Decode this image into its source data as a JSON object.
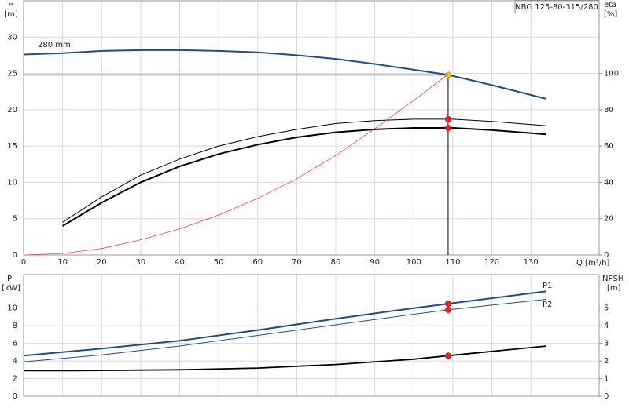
{
  "chart_data": [
    {
      "type": "line",
      "title": "NBG 125-80-315/280",
      "y_label": "H",
      "y_unit": "[m]",
      "y2_label": "eta",
      "y2_unit": "[%]",
      "x_label": "Q [m³/h]",
      "xlim": [
        0,
        147.5
      ],
      "xticks": [
        0,
        10,
        20,
        30,
        40,
        50,
        60,
        70,
        80,
        90,
        100,
        110,
        120,
        130
      ],
      "ylim": [
        0,
        35
      ],
      "yticks": [
        0,
        5,
        10,
        15,
        20,
        25,
        30
      ],
      "y2lim": [
        0,
        140
      ],
      "y2ticks": [
        0,
        20,
        40,
        60,
        80,
        100
      ],
      "grid": true,
      "show_xtick_labels": true,
      "duty": {
        "x": 108.8,
        "y": 24.8
      },
      "series": [
        {
          "name": "280 mm",
          "color": "#1b4f8c",
          "width": 2,
          "axis": "y",
          "x": [
            0,
            10,
            20,
            30,
            40,
            50,
            60,
            70,
            80,
            90,
            100,
            108.8,
            120,
            134
          ],
          "values": [
            27.6,
            27.8,
            28.1,
            28.2,
            28.2,
            28.1,
            27.9,
            27.5,
            27.0,
            26.3,
            25.5,
            24.8,
            23.4,
            21.5
          ],
          "duty_value": 24.8,
          "duty_color": "#f5d000"
        },
        {
          "color": "#000000",
          "width": 1,
          "axis": "y2",
          "x": [
            10,
            20,
            30,
            40,
            50,
            60,
            70,
            80,
            90,
            100,
            110,
            120,
            134
          ],
          "values": [
            18,
            32,
            44,
            52.8,
            60,
            65.2,
            69.2,
            72.4,
            74,
            74.8,
            74.8,
            73.6,
            71.2
          ],
          "duty_value": 74.8,
          "duty_color": "#ff1a1a"
        },
        {
          "color": "#000000",
          "width": 2,
          "axis": "y2",
          "x": [
            10,
            20,
            30,
            40,
            50,
            60,
            70,
            80,
            90,
            100,
            110,
            120,
            134
          ],
          "values": [
            16,
            28.8,
            40,
            48.8,
            55.6,
            60.8,
            64.8,
            67.6,
            69.2,
            70,
            70,
            68.8,
            66.4
          ],
          "duty_value": 70,
          "duty_color": "#ff1a1a"
        },
        {
          "color": "#ff4040",
          "width": 0.8,
          "axis": "y",
          "x": [
            0,
            10,
            20,
            30,
            40,
            50,
            60,
            70,
            80,
            90,
            100,
            108.8
          ],
          "values": [
            0,
            0.2,
            0.9,
            2.1,
            3.6,
            5.5,
            7.8,
            10.5,
            13.7,
            17.4,
            21.3,
            24.9
          ]
        }
      ]
    },
    {
      "type": "line",
      "y_label": "P",
      "y_unit": "[kW]",
      "y2_label": "NPSH",
      "y2_unit": "[m]",
      "xlim": [
        0,
        147.5
      ],
      "xticks": [
        0,
        10,
        20,
        30,
        40,
        50,
        60,
        70,
        80,
        90,
        100,
        110,
        120,
        130
      ],
      "ylim": [
        0,
        13.8
      ],
      "yticks": [
        0,
        2,
        4,
        6,
        8,
        10
      ],
      "y2lim": [
        0,
        6.9
      ],
      "y2ticks": [
        0,
        1,
        2,
        3,
        4,
        5
      ],
      "grid": true,
      "show_xtick_labels": false,
      "series": [
        {
          "name": "P1",
          "color": "#1b4f8c",
          "width": 2,
          "axis": "y",
          "x": [
            0,
            20,
            40,
            60,
            80,
            100,
            108.8,
            134
          ],
          "values": [
            4.6,
            5.4,
            6.3,
            7.5,
            8.8,
            10.0,
            10.5,
            11.9
          ],
          "duty_value": 10.5,
          "duty_color": "#ff1a1a"
        },
        {
          "name": "P2",
          "color": "#1b4f8c",
          "width": 1,
          "axis": "y",
          "x": [
            0,
            20,
            40,
            60,
            80,
            100,
            108.8,
            134
          ],
          "values": [
            3.9,
            4.7,
            5.7,
            6.9,
            8.1,
            9.3,
            9.8,
            11.0
          ],
          "duty_value": 9.8,
          "duty_color": "#ff1a1a"
        },
        {
          "color": "#000000",
          "width": 1.8,
          "axis": "y2",
          "x": [
            0,
            13,
            40,
            60,
            80,
            100,
            108.8,
            134
          ],
          "values": [
            1.45,
            1.45,
            1.5,
            1.6,
            1.8,
            2.1,
            2.3,
            2.85
          ],
          "duty_value": 2.3,
          "duty_color": "#ff1a1a"
        }
      ]
    }
  ]
}
